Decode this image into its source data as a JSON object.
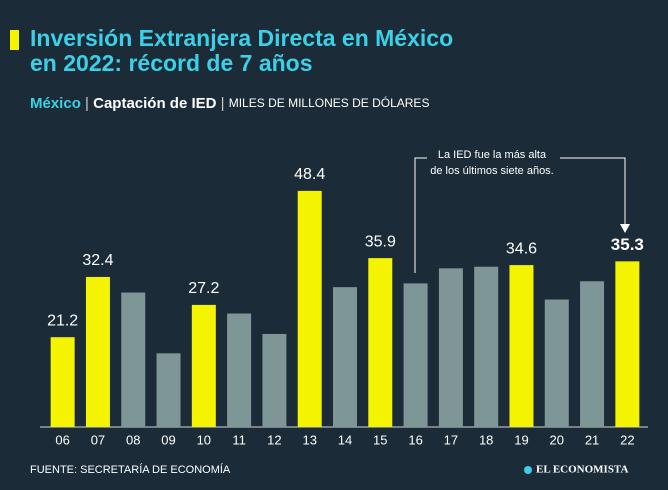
{
  "chart_data": {
    "type": "bar",
    "title_lines": [
      "Inversión Extranjera Directa en México",
      "en 2022: récord de 7 años"
    ],
    "subtitle": {
      "country": "México",
      "topic": "Captación de IED",
      "units": "MILES DE MILLONES DE DÓLARES"
    },
    "categories": [
      "06",
      "07",
      "08",
      "09",
      "10",
      "11",
      "12",
      "13",
      "14",
      "15",
      "16",
      "17",
      "18",
      "19",
      "20",
      "21",
      "22"
    ],
    "values": [
      21.2,
      32.4,
      29.5,
      18.2,
      27.2,
      25.6,
      21.8,
      48.4,
      30.5,
      35.9,
      31.2,
      34.0,
      34.3,
      34.6,
      28.2,
      31.6,
      35.3
    ],
    "value_labels": [
      "21.2",
      "32.4",
      null,
      null,
      "27.2",
      null,
      null,
      "48.4",
      null,
      "35.9",
      null,
      null,
      null,
      "34.6",
      null,
      null,
      "35.3"
    ],
    "colors": [
      "#f4f400",
      "#f4f400",
      "#7f9696",
      "#7f9696",
      "#f4f400",
      "#7f9696",
      "#7f9696",
      "#f4f400",
      "#7f9696",
      "#f4f400",
      "#7f9696",
      "#7f9696",
      "#7f9696",
      "#f4f400",
      "#7f9696",
      "#7f9696",
      "#f4f400"
    ],
    "ylim": [
      4.5,
      56
    ],
    "annotation": [
      "La IED fue la más alta",
      "de los últimos siete años."
    ],
    "source": "FUENTE: SECRETARÍA DE ECONOMÍA",
    "brand": "EL ECONOMISTA"
  }
}
